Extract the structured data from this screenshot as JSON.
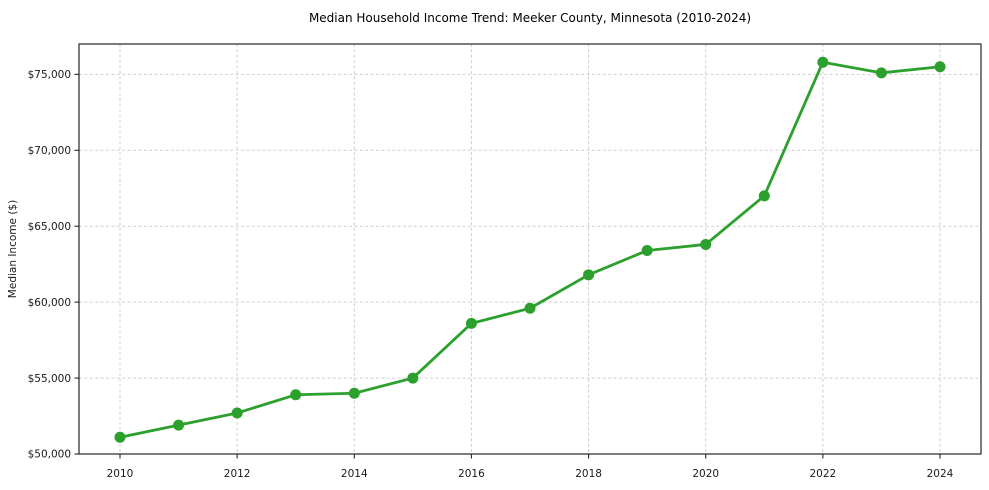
{
  "chart_data": {
    "type": "line",
    "title": "Median Household Income Trend: Meeker County, Minnesota (2010-2024)",
    "xlabel": "",
    "ylabel": "Median Income ($)",
    "x": [
      2010,
      2011,
      2012,
      2013,
      2014,
      2015,
      2016,
      2017,
      2018,
      2019,
      2020,
      2021,
      2022,
      2023,
      2024
    ],
    "values": [
      51100,
      51900,
      52700,
      53900,
      54000,
      55000,
      58600,
      59600,
      61800,
      63400,
      63800,
      67000,
      75800,
      75100,
      75500
    ],
    "xlim": [
      2009.3,
      2024.7
    ],
    "ylim": [
      50000,
      77000
    ],
    "xticks": {
      "values": [
        2010,
        2012,
        2014,
        2016,
        2018,
        2020,
        2022,
        2024
      ],
      "labels": [
        "2010",
        "2012",
        "2014",
        "2016",
        "2018",
        "2020",
        "2022",
        "2024"
      ]
    },
    "yticks": {
      "values": [
        50000,
        55000,
        60000,
        65000,
        70000,
        75000
      ],
      "labels": [
        "$50,000",
        "$55,000",
        "$60,000",
        "$65,000",
        "$70,000",
        "$75,000"
      ]
    },
    "grid": true,
    "legend_position": "none",
    "colors": {
      "line": "#2ca02c",
      "marker": "#2ca02c",
      "grid": "#cfcfcf",
      "spine": "#262626",
      "tick": "#262626",
      "text": "#1a1a1a",
      "title": "#000000",
      "background": "#ffffff"
    }
  }
}
